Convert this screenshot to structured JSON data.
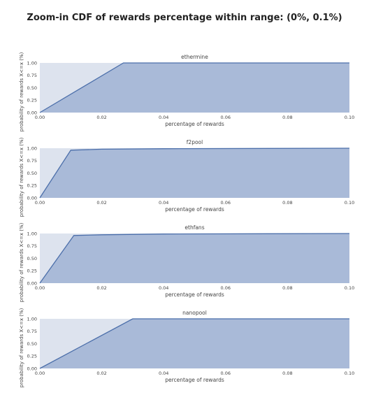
{
  "title": "Zoom-in CDF of rewards percentage within range: (0%, 0.1%)",
  "colors": {
    "fill": "#a9bad8",
    "line": "#4c6faa",
    "band": "#dde3ee",
    "text": "#444444"
  },
  "chart_data": [
    {
      "type": "area",
      "title": "ethermine",
      "xlabel": "percentage of rewards",
      "ylabel": "probability of rewards X<=x (%)",
      "xlim": [
        0,
        0.1
      ],
      "ylim": [
        0,
        1.0
      ],
      "xticks": [
        "0.00",
        "0.02",
        "0.04",
        "0.06",
        "0.08",
        "0.10"
      ],
      "yticks": [
        "0.00",
        "0.25",
        "0.50",
        "0.75",
        "1.00"
      ],
      "grid": false,
      "series": [
        {
          "x": [
            0,
            0.027,
            0.1
          ],
          "y": [
            0,
            1.0,
            1.0
          ]
        }
      ]
    },
    {
      "type": "area",
      "title": "f2pool",
      "xlabel": "percentage of rewards",
      "ylabel": "probability of rewards X<=x (%)",
      "xlim": [
        0,
        0.1
      ],
      "ylim": [
        0,
        1.0
      ],
      "xticks": [
        "0.00",
        "0.02",
        "0.04",
        "0.06",
        "0.08",
        "0.10"
      ],
      "yticks": [
        "0.00",
        "0.25",
        "0.50",
        "0.75",
        "1.00"
      ],
      "grid": false,
      "series": [
        {
          "x": [
            0,
            0.01,
            0.02,
            0.04,
            0.1
          ],
          "y": [
            0,
            0.96,
            0.98,
            0.99,
            1.0
          ]
        }
      ]
    },
    {
      "type": "area",
      "title": "ethfans",
      "xlabel": "percentage of rewards",
      "ylabel": "probability of rewards X<=x (%)",
      "xlim": [
        0,
        0.1
      ],
      "ylim": [
        0,
        1.0
      ],
      "xticks": [
        "0.00",
        "0.02",
        "0.04",
        "0.06",
        "0.08",
        "0.10"
      ],
      "yticks": [
        "0.00",
        "0.25",
        "0.50",
        "0.75",
        "1.00"
      ],
      "grid": false,
      "series": [
        {
          "x": [
            0,
            0.011,
            0.02,
            0.04,
            0.1
          ],
          "y": [
            0,
            0.96,
            0.975,
            0.99,
            1.0
          ]
        }
      ]
    },
    {
      "type": "area",
      "title": "nanopool",
      "xlabel": "percentage of rewards",
      "ylabel": "probability of rewards X<=x (%)",
      "xlim": [
        0,
        0.1
      ],
      "ylim": [
        0,
        1.0
      ],
      "xticks": [
        "0.00",
        "0.02",
        "0.04",
        "0.06",
        "0.08",
        "0.10"
      ],
      "yticks": [
        "0.00",
        "0.25",
        "0.50",
        "0.75",
        "1.00"
      ],
      "grid": false,
      "series": [
        {
          "x": [
            0,
            0.03,
            0.1
          ],
          "y": [
            0,
            1.0,
            1.0
          ]
        }
      ]
    }
  ]
}
